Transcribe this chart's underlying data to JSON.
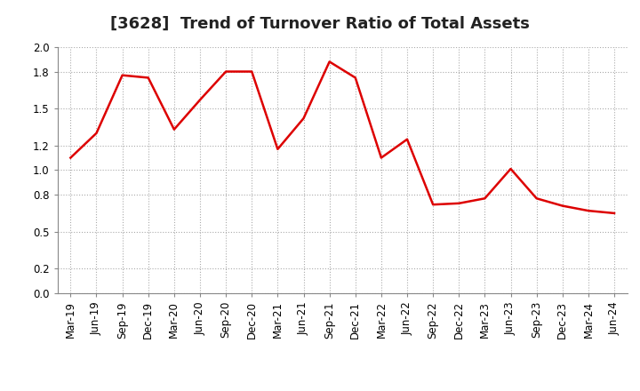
{
  "title": "[3628]  Trend of Turnover Ratio of Total Assets",
  "x_labels": [
    "Mar-19",
    "Jun-19",
    "Sep-19",
    "Dec-19",
    "Mar-20",
    "Jun-20",
    "Sep-20",
    "Dec-20",
    "Mar-21",
    "Jun-21",
    "Sep-21",
    "Dec-21",
    "Mar-22",
    "Jun-22",
    "Sep-22",
    "Dec-22",
    "Mar-23",
    "Jun-23",
    "Sep-23",
    "Dec-23",
    "Mar-24",
    "Jun-24"
  ],
  "y_values": [
    1.1,
    1.3,
    1.77,
    1.75,
    1.33,
    1.57,
    1.8,
    1.8,
    1.17,
    1.42,
    1.88,
    1.75,
    1.1,
    1.25,
    0.72,
    0.73,
    0.77,
    1.01,
    0.77,
    0.71,
    0.67,
    0.65
  ],
  "line_color": "#dd0000",
  "line_width": 1.8,
  "ylim": [
    0.0,
    2.0
  ],
  "yticks": [
    0.0,
    0.2,
    0.5,
    0.8,
    1.0,
    1.2,
    1.5,
    1.8,
    2.0
  ],
  "grid_color": "#aaaaaa",
  "background_color": "#ffffff",
  "title_fontsize": 13,
  "tick_fontsize": 8.5
}
